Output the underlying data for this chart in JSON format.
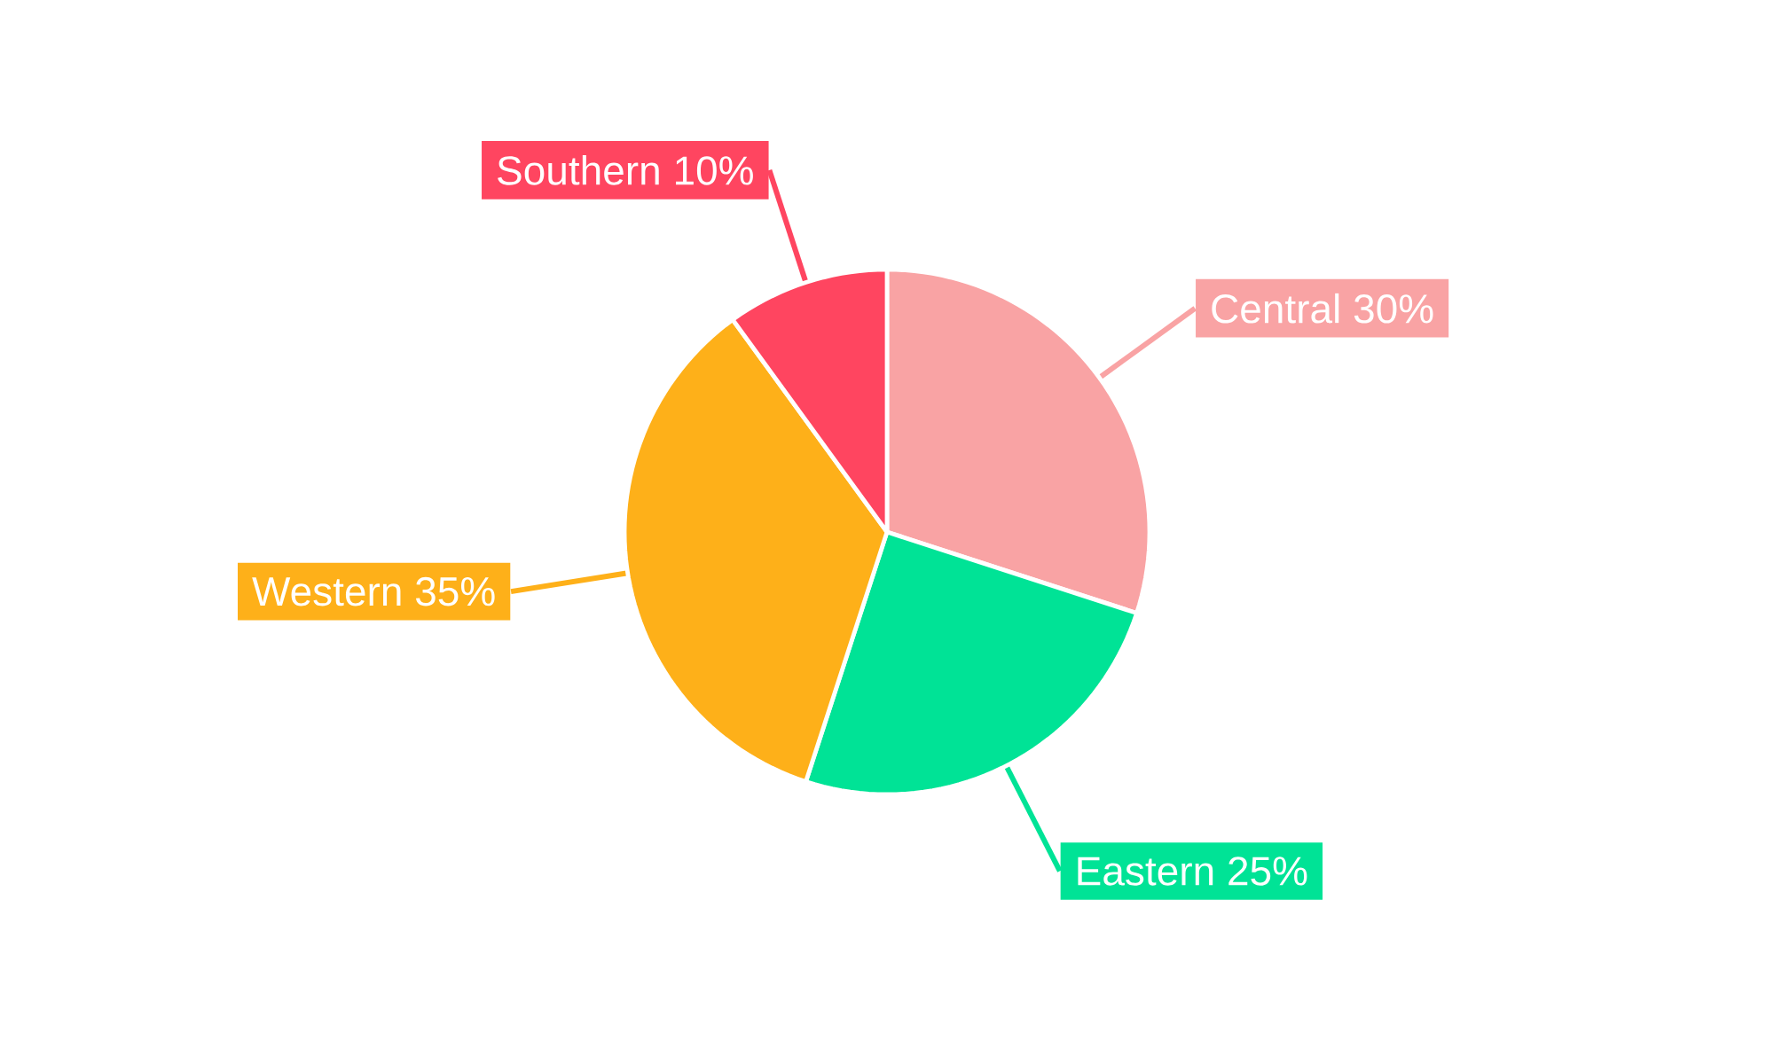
{
  "chart_data": {
    "type": "pie",
    "categories": [
      "Central",
      "Eastern",
      "Western",
      "Southern"
    ],
    "values": [
      30,
      25,
      35,
      10
    ],
    "colors": [
      "#f9a3a4",
      "#00e396",
      "#feb019",
      "#ff4560"
    ],
    "value_labels": [
      "30%",
      "25%",
      "35%",
      "10%"
    ]
  }
}
